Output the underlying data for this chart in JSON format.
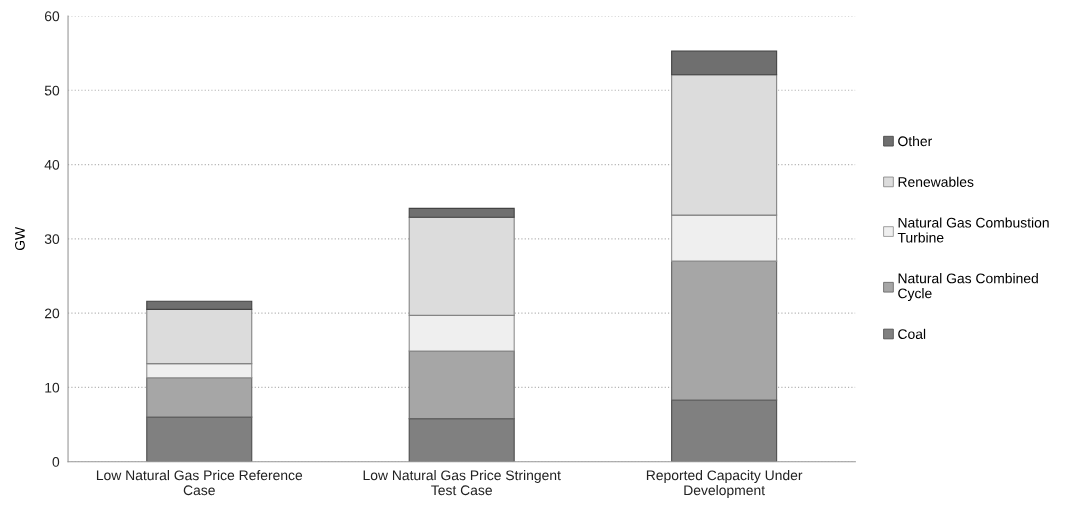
{
  "chart_data": {
    "type": "bar",
    "stacked": true,
    "ylabel": "GW",
    "categories": [
      "Low Natural Gas Price Reference Case",
      "Low Natural Gas Price Stringent Test Case",
      "Reported Capacity Under Development"
    ],
    "series": [
      {
        "name": "Coal",
        "color": "#808080",
        "values": [
          6.0,
          5.8,
          8.3
        ]
      },
      {
        "name": "Natural Gas Combined Cycle",
        "color": "#a6a6a6",
        "values": [
          5.3,
          9.1,
          18.7
        ]
      },
      {
        "name": "Natural Gas Combustion Turbine",
        "color": "#efefef",
        "values": [
          1.9,
          4.8,
          6.2
        ]
      },
      {
        "name": "Renewables",
        "color": "#dcdcdc",
        "values": [
          7.3,
          13.2,
          18.9
        ]
      },
      {
        "name": "Other",
        "color": "#6f6f6f",
        "values": [
          1.1,
          1.2,
          3.2
        ]
      }
    ],
    "ylim": [
      0,
      60
    ],
    "yticks": [
      0,
      10,
      20,
      30,
      40,
      50,
      60
    ],
    "grid": "y",
    "legend": "right"
  }
}
